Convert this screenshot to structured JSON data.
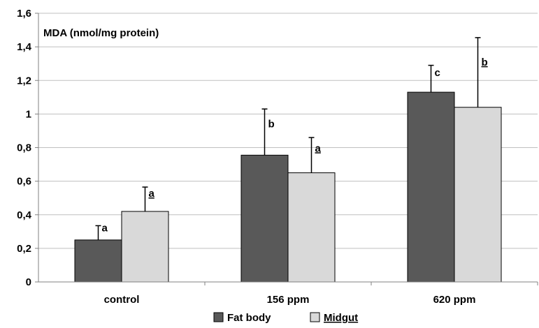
{
  "chart_data": {
    "type": "bar",
    "title": "",
    "xlabel": "",
    "ylabel": "MDA (nmol/mg protein)",
    "ylim": [
      0,
      1.6
    ],
    "yticks": [
      "0",
      "0,2",
      "0,4",
      "0,6",
      "0,8",
      "1",
      "1,2",
      "1,4",
      "1,6"
    ],
    "grid": true,
    "legend_position": "bottom",
    "categories": [
      "control",
      "156 ppm",
      "620 ppm"
    ],
    "series": [
      {
        "name": "Fat body",
        "color": "#595959",
        "values": [
          0.25,
          0.755,
          1.13
        ],
        "error": [
          0.085,
          0.275,
          0.16
        ],
        "significance": [
          "a",
          "b",
          "c"
        ],
        "significance_underlined": false
      },
      {
        "name": "Midgut",
        "color": "#d9d9d9",
        "values": [
          0.42,
          0.65,
          1.04
        ],
        "error": [
          0.145,
          0.21,
          0.415
        ],
        "significance": [
          "a",
          "a",
          "b"
        ],
        "significance_underlined": true
      }
    ]
  },
  "colors": {
    "gridline": "#bfbfbf",
    "axis": "#808080",
    "bar_stroke": "#000000"
  }
}
